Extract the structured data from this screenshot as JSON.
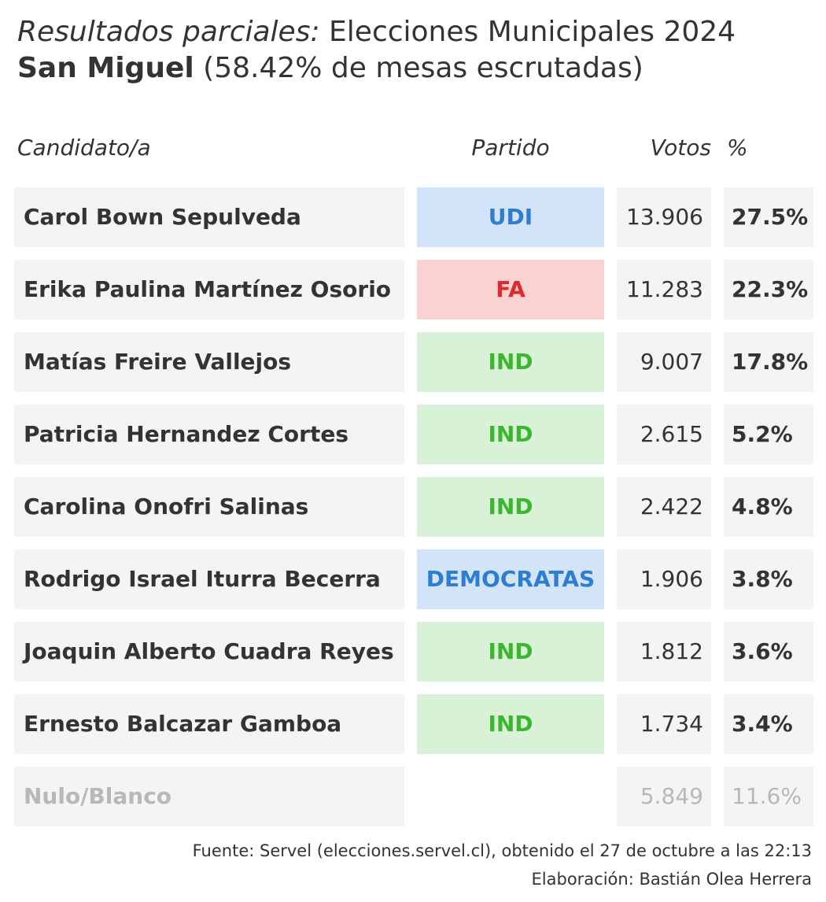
{
  "header": {
    "title_italic": "Resultados parciales:",
    "title_rest": "Elecciones Municipales 2024",
    "commune": "San Miguel",
    "subtitle_rest": "(58.42% de mesas escrutadas)"
  },
  "columns": {
    "candidate": "Candidato/a",
    "party": "Partido",
    "votes": "Votos",
    "pct": "%"
  },
  "colors": {
    "blue_text": "#2d7dd2",
    "blue_bg": "#d3e4f8",
    "red_text": "#e0292b",
    "red_bg": "#f9d2d2",
    "green_text": "#3bb62e",
    "green_bg": "#d9f1d6",
    "muted_text": "#b8b8b8",
    "cell_bg": "#f4f4f4"
  },
  "chart_data": {
    "type": "table",
    "columns": [
      "Candidato/a",
      "Partido",
      "Votos",
      "%"
    ],
    "rows": [
      {
        "name": "Carol Bown Sepulveda",
        "party": "UDI",
        "party_color": "blue",
        "votes": "13.906",
        "pct": "27.5%"
      },
      {
        "name": "Erika Paulina Martínez Osorio",
        "party": "FA",
        "party_color": "red",
        "votes": "11.283",
        "pct": "22.3%"
      },
      {
        "name": "Matías Freire Vallejos",
        "party": "IND",
        "party_color": "green",
        "votes": "9.007",
        "pct": "17.8%"
      },
      {
        "name": "Patricia Hernandez Cortes",
        "party": "IND",
        "party_color": "green",
        "votes": "2.615",
        "pct": "5.2%"
      },
      {
        "name": "Carolina Onofri Salinas",
        "party": "IND",
        "party_color": "green",
        "votes": "2.422",
        "pct": "4.8%"
      },
      {
        "name": "Rodrigo Israel Iturra Becerra",
        "party": "DEMOCRATAS",
        "party_color": "blue",
        "votes": "1.906",
        "pct": "3.8%"
      },
      {
        "name": "Joaquin Alberto Cuadra Reyes",
        "party": "IND",
        "party_color": "green",
        "votes": "1.812",
        "pct": "3.6%"
      },
      {
        "name": "Ernesto Balcazar Gamboa",
        "party": "IND",
        "party_color": "green",
        "votes": "1.734",
        "pct": "3.4%"
      },
      {
        "name": "Nulo/Blanco",
        "party": "",
        "party_color": "none",
        "votes": "5.849",
        "pct": "11.6%",
        "muted": true
      }
    ]
  },
  "footer": {
    "source": "Fuente: Servel (elecciones.servel.cl), obtenido el 27 de octubre a las 22:13",
    "credit": "Elaboración: Bastián Olea Herrera"
  }
}
